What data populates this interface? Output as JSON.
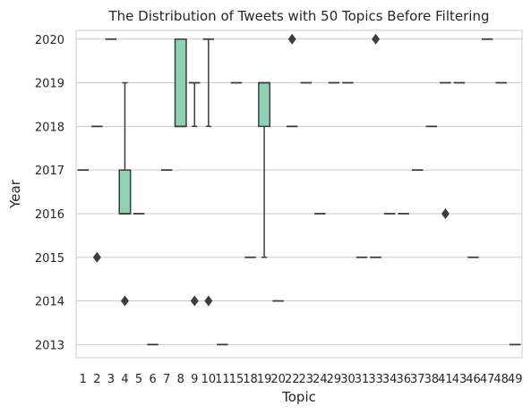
{
  "chart_data": {
    "type": "box",
    "title": "The Distribution of Tweets with 50 Topics Before Filtering",
    "xlabel": "Topic",
    "ylabel": "Year",
    "ylim": [
      2012.7,
      2020.2
    ],
    "yticks": [
      2013,
      2014,
      2015,
      2016,
      2017,
      2018,
      2019,
      2020
    ],
    "ytick_labels": [
      "2013",
      "2014",
      "2015",
      "2016",
      "2017",
      "2018",
      "2019",
      "2020"
    ],
    "grid": "horizontal",
    "colors": {
      "box_fill": "#8fd1b5",
      "box_edge": "#3d3d3d",
      "grid": "#cccccc",
      "axes_edge": "#cccccc"
    },
    "categories": [
      "1",
      "2",
      "3",
      "4",
      "5",
      "6",
      "7",
      "8",
      "9",
      "10",
      "11",
      "15",
      "18",
      "19",
      "20",
      "22",
      "23",
      "24",
      "29",
      "30",
      "31",
      "33",
      "34",
      "36",
      "37",
      "38",
      "41",
      "43",
      "46",
      "47",
      "48",
      "49"
    ],
    "boxes": [
      {
        "category": "1",
        "q1": 2017,
        "median": 2017,
        "q3": 2017,
        "whisker_low": 2017,
        "whisker_high": 2017,
        "outliers": []
      },
      {
        "category": "2",
        "q1": 2018,
        "median": 2018,
        "q3": 2018,
        "whisker_low": 2018,
        "whisker_high": 2018,
        "outliers": [
          2015
        ]
      },
      {
        "category": "3",
        "q1": 2020,
        "median": 2020,
        "q3": 2020,
        "whisker_low": 2020,
        "whisker_high": 2020,
        "outliers": []
      },
      {
        "category": "4",
        "q1": 2016,
        "median": 2016,
        "q3": 2017,
        "whisker_low": 2016,
        "whisker_high": 2019,
        "outliers": [
          2014
        ]
      },
      {
        "category": "5",
        "q1": 2016,
        "median": 2016,
        "q3": 2016,
        "whisker_low": 2016,
        "whisker_high": 2016,
        "outliers": []
      },
      {
        "category": "6",
        "q1": 2013,
        "median": 2013,
        "q3": 2013,
        "whisker_low": 2013,
        "whisker_high": 2013,
        "outliers": []
      },
      {
        "category": "7",
        "q1": 2017,
        "median": 2017,
        "q3": 2017,
        "whisker_low": 2017,
        "whisker_high": 2017,
        "outliers": []
      },
      {
        "category": "8",
        "q1": 2018,
        "median": 2018,
        "q3": 2020,
        "whisker_low": 2018,
        "whisker_high": 2020,
        "outliers": []
      },
      {
        "category": "9",
        "q1": 2019,
        "median": 2019,
        "q3": 2019,
        "whisker_low": 2018,
        "whisker_high": 2019,
        "outliers": [
          2014
        ]
      },
      {
        "category": "10",
        "q1": 2020,
        "median": 2020,
        "q3": 2020,
        "whisker_low": 2018,
        "whisker_high": 2020,
        "outliers": [
          2014
        ]
      },
      {
        "category": "11",
        "q1": 2013,
        "median": 2013,
        "q3": 2013,
        "whisker_low": 2013,
        "whisker_high": 2013,
        "outliers": []
      },
      {
        "category": "15",
        "q1": 2019,
        "median": 2019,
        "q3": 2019,
        "whisker_low": 2019,
        "whisker_high": 2019,
        "outliers": []
      },
      {
        "category": "18",
        "q1": 2015,
        "median": 2015,
        "q3": 2015,
        "whisker_low": 2015,
        "whisker_high": 2015,
        "outliers": []
      },
      {
        "category": "19",
        "q1": 2018,
        "median": 2019,
        "q3": 2019,
        "whisker_low": 2015,
        "whisker_high": 2019,
        "outliers": []
      },
      {
        "category": "20",
        "q1": 2014,
        "median": 2014,
        "q3": 2014,
        "whisker_low": 2014,
        "whisker_high": 2014,
        "outliers": []
      },
      {
        "category": "22",
        "q1": 2018,
        "median": 2018,
        "q3": 2018,
        "whisker_low": 2018,
        "whisker_high": 2018,
        "outliers": [
          2020
        ]
      },
      {
        "category": "23",
        "q1": 2019,
        "median": 2019,
        "q3": 2019,
        "whisker_low": 2019,
        "whisker_high": 2019,
        "outliers": []
      },
      {
        "category": "24",
        "q1": 2016,
        "median": 2016,
        "q3": 2016,
        "whisker_low": 2016,
        "whisker_high": 2016,
        "outliers": []
      },
      {
        "category": "29",
        "q1": 2019,
        "median": 2019,
        "q3": 2019,
        "whisker_low": 2019,
        "whisker_high": 2019,
        "outliers": []
      },
      {
        "category": "30",
        "q1": 2019,
        "median": 2019,
        "q3": 2019,
        "whisker_low": 2019,
        "whisker_high": 2019,
        "outliers": []
      },
      {
        "category": "31",
        "q1": 2015,
        "median": 2015,
        "q3": 2015,
        "whisker_low": 2015,
        "whisker_high": 2015,
        "outliers": []
      },
      {
        "category": "33",
        "q1": 2015,
        "median": 2015,
        "q3": 2015,
        "whisker_low": 2015,
        "whisker_high": 2015,
        "outliers": [
          2020
        ]
      },
      {
        "category": "34",
        "q1": 2016,
        "median": 2016,
        "q3": 2016,
        "whisker_low": 2016,
        "whisker_high": 2016,
        "outliers": []
      },
      {
        "category": "36",
        "q1": 2016,
        "median": 2016,
        "q3": 2016,
        "whisker_low": 2016,
        "whisker_high": 2016,
        "outliers": []
      },
      {
        "category": "37",
        "q1": 2017,
        "median": 2017,
        "q3": 2017,
        "whisker_low": 2017,
        "whisker_high": 2017,
        "outliers": []
      },
      {
        "category": "38",
        "q1": 2018,
        "median": 2018,
        "q3": 2018,
        "whisker_low": 2018,
        "whisker_high": 2018,
        "outliers": []
      },
      {
        "category": "41",
        "q1": 2019,
        "median": 2019,
        "q3": 2019,
        "whisker_low": 2019,
        "whisker_high": 2019,
        "outliers": [
          2016
        ]
      },
      {
        "category": "43",
        "q1": 2019,
        "median": 2019,
        "q3": 2019,
        "whisker_low": 2019,
        "whisker_high": 2019,
        "outliers": []
      },
      {
        "category": "46",
        "q1": 2015,
        "median": 2015,
        "q3": 2015,
        "whisker_low": 2015,
        "whisker_high": 2015,
        "outliers": []
      },
      {
        "category": "47",
        "q1": 2020,
        "median": 2020,
        "q3": 2020,
        "whisker_low": 2020,
        "whisker_high": 2020,
        "outliers": []
      },
      {
        "category": "48",
        "q1": 2019,
        "median": 2019,
        "q3": 2019,
        "whisker_low": 2019,
        "whisker_high": 2019,
        "outliers": []
      },
      {
        "category": "49",
        "q1": 2013,
        "median": 2013,
        "q3": 2013,
        "whisker_low": 2013,
        "whisker_high": 2013,
        "outliers": []
      }
    ]
  }
}
